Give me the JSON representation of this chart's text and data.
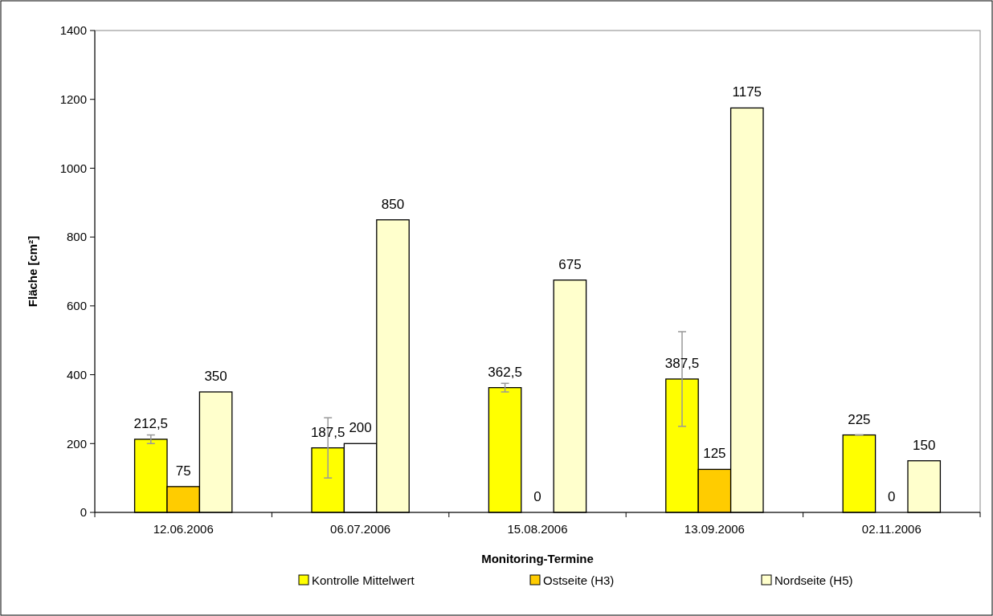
{
  "chart_data": {
    "type": "bar",
    "xlabel": "Monitoring-Termine",
    "ylabel": "Fläche [cm²]",
    "categories": [
      "12.06.2006",
      "06.07.2006",
      "15.08.2006",
      "13.09.2006",
      "02.11.2006"
    ],
    "series": [
      {
        "name": "Kontrolle Mittelwert",
        "color": "#ffff00",
        "values": [
          212.5,
          187.5,
          362.5,
          387.5,
          225
        ],
        "errors": [
          12.5,
          87.5,
          12.5,
          137.5,
          0
        ],
        "value_labels": [
          "212,5",
          "187,5",
          "362,5",
          "387,5",
          "225"
        ]
      },
      {
        "name": "Ostseite (H3)",
        "color": "#ffcc00",
        "colors": [
          "#ffcc00",
          "#ffffff",
          "#ffcc00",
          "#ffcc00",
          "#ffcc00"
        ],
        "values": [
          75,
          200,
          0,
          125,
          0
        ],
        "value_labels": [
          "75",
          "200",
          "0",
          "125",
          "0"
        ]
      },
      {
        "name": "Nordseite (H5)",
        "color": "#ffffcc",
        "values": [
          350,
          850,
          675,
          1175,
          150
        ],
        "value_labels": [
          "350",
          "850",
          "675",
          "1175",
          "150"
        ]
      }
    ],
    "ylim": [
      0,
      1400
    ],
    "yticks": [
      0,
      200,
      400,
      600,
      800,
      1000,
      1200,
      1400
    ],
    "grid": false,
    "legend": "bottom"
  }
}
